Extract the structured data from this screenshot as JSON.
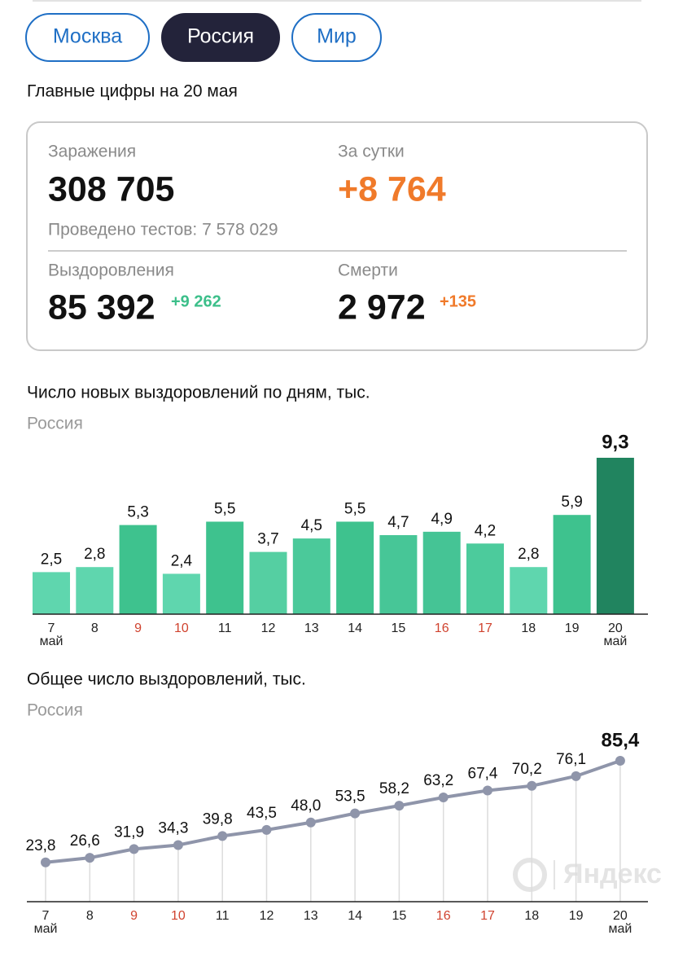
{
  "tabs": [
    {
      "label": "Москва",
      "active": false
    },
    {
      "label": "Россия",
      "active": true
    },
    {
      "label": "Мир",
      "active": false
    }
  ],
  "headline": "Главные цифры на 20 мая",
  "stats": {
    "cases": {
      "label": "Заражения",
      "value": "308 705"
    },
    "daily": {
      "label": "За сутки",
      "value": "+8 764"
    },
    "tests": "Проведено тестов: 7 578 029",
    "recovered": {
      "label": "Выздоровления",
      "value": "85 392",
      "delta": "+9 262"
    },
    "deaths": {
      "label": "Смерти",
      "value": "2 972",
      "delta": "+135"
    }
  },
  "chart_data": [
    {
      "type": "bar",
      "title": "Число новых выздоровлений по дням, тыс.",
      "subtitle": "Россия",
      "categories": [
        "7",
        "8",
        "9",
        "10",
        "11",
        "12",
        "13",
        "14",
        "15",
        "16",
        "17",
        "18",
        "19",
        "20"
      ],
      "category_sublabels": [
        "май",
        null,
        null,
        null,
        null,
        null,
        null,
        null,
        null,
        null,
        null,
        null,
        null,
        "май"
      ],
      "category_colors": [
        "#222",
        "#222",
        "#d0432f",
        "#d0432f",
        "#222",
        "#222",
        "#222",
        "#222",
        "#222",
        "#d0432f",
        "#d0432f",
        "#222",
        "#222",
        "#222"
      ],
      "values": [
        2.5,
        2.8,
        5.3,
        2.4,
        5.5,
        3.7,
        4.5,
        5.5,
        4.7,
        4.9,
        4.2,
        2.8,
        5.9,
        9.3
      ],
      "value_labels": [
        "2,5",
        "2,8",
        "5,3",
        "2,4",
        "5,5",
        "3,7",
        "4,5",
        "5,5",
        "4,7",
        "4,9",
        "4,2",
        "2,8",
        "5,9",
        "9,3"
      ],
      "colors": [
        "#5fd6ae",
        "#5fd6ae",
        "#3ec28e",
        "#5fd6ae",
        "#3ec28e",
        "#55cfa2",
        "#4bc99a",
        "#3ec28e",
        "#47c697",
        "#45c495",
        "#4ccb9c",
        "#5fd6ae",
        "#3ec28e",
        "#21845f"
      ],
      "emphasize_last": true
    },
    {
      "type": "line",
      "title": "Общее число выздоровлений, тыс.",
      "subtitle": "Россия",
      "categories": [
        "7",
        "8",
        "9",
        "10",
        "11",
        "12",
        "13",
        "14",
        "15",
        "16",
        "17",
        "18",
        "19",
        "20"
      ],
      "category_sublabels": [
        "май",
        null,
        null,
        null,
        null,
        null,
        null,
        null,
        null,
        null,
        null,
        null,
        null,
        "май"
      ],
      "category_colors": [
        "#222",
        "#222",
        "#d0432f",
        "#d0432f",
        "#222",
        "#222",
        "#222",
        "#222",
        "#222",
        "#d0432f",
        "#d0432f",
        "#222",
        "#222",
        "#222"
      ],
      "values": [
        23.8,
        26.6,
        31.9,
        34.3,
        39.8,
        43.5,
        48.0,
        53.5,
        58.2,
        63.2,
        67.4,
        70.2,
        76.1,
        85.4
      ],
      "value_labels": [
        "23,8",
        "26,6",
        "31,9",
        "34,3",
        "39,8",
        "43,5",
        "48,0",
        "53,5",
        "58,2",
        "63,2",
        "67,4",
        "70,2",
        "76,1",
        "85,4"
      ],
      "color": "#8f95aa",
      "emphasize_last": true
    }
  ],
  "watermark": "Яндекс"
}
